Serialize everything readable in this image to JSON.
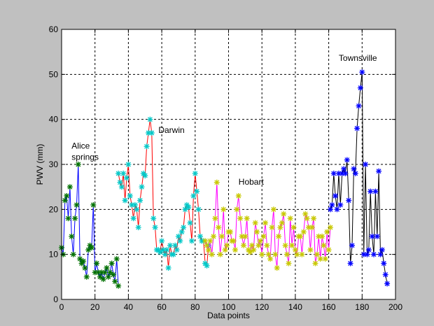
{
  "chart_data": {
    "type": "line",
    "xlabel": "Data points",
    "ylabel": "PWV (mm)",
    "xlim": [
      0,
      200
    ],
    "ylim": [
      0,
      60
    ],
    "xticks": [
      0,
      20,
      40,
      60,
      80,
      100,
      120,
      140,
      160,
      180,
      200
    ],
    "yticks": [
      0,
      10,
      20,
      30,
      40,
      50,
      60
    ],
    "grid": true,
    "colors": {
      "figure_bg": "#c0c0c0",
      "axes_bg": "#ffffff"
    },
    "annotations": [
      {
        "text": "Alice",
        "x": 6,
        "y": 33.5
      },
      {
        "text": "springs",
        "x": 6,
        "y": 31
      },
      {
        "text": "Darwin",
        "x": 58,
        "y": 37
      },
      {
        "text": "Hobart",
        "x": 106,
        "y": 25.5
      },
      {
        "text": "Townsville",
        "x": 166,
        "y": 53
      }
    ],
    "series": [
      {
        "line_color": "#0000ff",
        "marker_color": "#007000",
        "marker": "asterisk",
        "x": [
          0,
          1,
          2,
          3,
          4,
          5,
          6,
          7,
          8,
          9,
          10,
          11,
          12,
          13,
          14,
          15,
          16,
          17,
          18,
          19,
          20,
          21,
          22,
          23,
          24,
          25,
          26,
          27,
          28,
          29,
          30,
          31,
          32,
          33,
          34
        ],
        "y": [
          11.5,
          10,
          22,
          23,
          18,
          25,
          14,
          10,
          18,
          21,
          30,
          9,
          8,
          8.5,
          7,
          5,
          11,
          12,
          11.5,
          21,
          6,
          8,
          6,
          5,
          6,
          4.5,
          6,
          7,
          5,
          6,
          8,
          5.5,
          4,
          9,
          3
        ]
      },
      {
        "line_color": "#ff0000",
        "marker_color": "#00c8c8",
        "marker": "asterisk",
        "x": [
          34,
          35,
          36,
          37,
          38,
          39,
          40,
          41,
          42,
          43,
          44,
          45,
          46,
          47,
          48,
          49,
          50,
          51,
          52,
          53,
          54,
          55,
          56,
          57,
          58,
          59,
          60,
          61,
          62,
          63,
          64,
          65,
          66,
          67,
          68,
          69,
          70,
          71,
          72,
          73,
          74,
          75,
          76,
          77,
          78,
          79,
          80,
          81,
          82,
          83,
          84,
          85,
          86,
          87,
          88
        ],
        "y": [
          28,
          26,
          25,
          28,
          22,
          27,
          30,
          23,
          21,
          18,
          21,
          20,
          16,
          22,
          25,
          28,
          27.5,
          34,
          37,
          40,
          37,
          18,
          16,
          11,
          11,
          10.5,
          13,
          11,
          10,
          11,
          7,
          12,
          10,
          10,
          12,
          11,
          14,
          13,
          15,
          16,
          20,
          21,
          20.5,
          17,
          13,
          23,
          28,
          24,
          20,
          14,
          13,
          13,
          8,
          7.5,
          12
        ]
      },
      {
        "line_color": "#ff00ff",
        "marker_color": "#c8c800",
        "marker": "asterisk",
        "x": [
          86,
          87,
          88,
          89,
          90,
          91,
          92,
          93,
          94,
          95,
          96,
          97,
          98,
          99,
          100,
          101,
          102,
          103,
          104,
          105,
          106,
          107,
          108,
          109,
          110,
          111,
          112,
          113,
          114,
          115,
          116,
          117,
          118,
          119,
          120,
          121,
          122,
          123,
          124,
          125,
          126,
          127,
          128,
          129,
          130,
          131,
          132,
          133,
          134,
          135,
          136,
          137,
          138,
          139,
          140,
          141,
          142,
          143,
          144,
          145,
          146,
          147,
          148,
          149,
          150,
          151,
          152,
          153,
          154,
          155,
          156,
          157,
          158,
          159,
          160,
          161
        ],
        "y": [
          13,
          12,
          11,
          13,
          10,
          14,
          18,
          26,
          16,
          10,
          14,
          20,
          11,
          12,
          15,
          15,
          13,
          13,
          11,
          20,
          23,
          18,
          14,
          12,
          14,
          18,
          11,
          10.5,
          12,
          11,
          17,
          15,
          12,
          13,
          10,
          14,
          17,
          12,
          10,
          9,
          16,
          20,
          10,
          7,
          14,
          16,
          17,
          19,
          12,
          10,
          8,
          18,
          12,
          16,
          11,
          10,
          14,
          14,
          10,
          15,
          19,
          18,
          16,
          11,
          16,
          18,
          8,
          10,
          14,
          9,
          14,
          12,
          9,
          15,
          11,
          16
        ]
      },
      {
        "line_color": "#000000",
        "marker_color": "#0000ff",
        "marker": "asterisk",
        "x": [
          161,
          162,
          163,
          164,
          165,
          166,
          167,
          168,
          169,
          170,
          171,
          172,
          173,
          174,
          175,
          176,
          177,
          178,
          179,
          180,
          181,
          182,
          183,
          184,
          185,
          186,
          187,
          188,
          189,
          190,
          191,
          192,
          193,
          194,
          195
        ],
        "y": [
          20,
          21,
          28,
          23,
          20,
          28,
          21,
          28,
          29,
          28,
          31,
          22,
          8,
          12,
          29,
          28,
          38,
          43,
          47,
          50.5,
          10,
          30,
          10,
          11,
          24,
          14,
          10,
          24,
          14,
          28.5,
          10,
          11,
          8,
          5.5,
          3.5
        ]
      }
    ]
  }
}
